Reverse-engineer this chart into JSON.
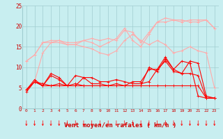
{
  "x": [
    0,
    1,
    2,
    3,
    4,
    5,
    6,
    7,
    8,
    9,
    10,
    11,
    12,
    13,
    14,
    15,
    16,
    17,
    18,
    19,
    20,
    21,
    22,
    23
  ],
  "series": [
    {
      "color": "#ffaaaa",
      "lw": 0.8,
      "values": [
        11.5,
        13.0,
        16.0,
        16.5,
        16.5,
        16.0,
        16.0,
        16.5,
        17.0,
        16.5,
        17.0,
        16.5,
        19.0,
        18.5,
        16.0,
        18.5,
        21.0,
        22.0,
        21.5,
        21.0,
        21.5,
        21.5,
        21.5,
        19.5
      ]
    },
    {
      "color": "#ffaaaa",
      "lw": 0.8,
      "values": [
        4.5,
        6.5,
        13.5,
        16.0,
        16.5,
        15.5,
        15.5,
        15.0,
        14.5,
        13.5,
        13.0,
        14.0,
        16.5,
        18.0,
        16.5,
        15.5,
        16.5,
        15.5,
        13.5,
        14.0,
        15.0,
        14.0,
        13.5,
        5.0
      ]
    },
    {
      "color": "#ffaaaa",
      "lw": 0.8,
      "values": [
        11.5,
        13.0,
        16.0,
        16.0,
        16.0,
        15.5,
        15.5,
        16.5,
        16.0,
        15.0,
        16.0,
        17.0,
        19.5,
        16.5,
        15.0,
        18.0,
        21.0,
        21.0,
        21.5,
        21.5,
        21.0,
        21.0,
        21.5,
        19.5
      ]
    },
    {
      "color": "#ff0000",
      "lw": 0.8,
      "values": [
        4.5,
        7.0,
        5.5,
        8.5,
        7.5,
        5.5,
        8.0,
        7.5,
        7.5,
        6.5,
        6.5,
        7.0,
        6.5,
        6.0,
        6.0,
        6.5,
        9.5,
        11.5,
        9.0,
        8.5,
        8.5,
        8.0,
        2.5,
        2.5
      ]
    },
    {
      "color": "#ff0000",
      "lw": 0.8,
      "values": [
        4.5,
        6.5,
        6.0,
        5.5,
        6.0,
        5.5,
        5.5,
        7.5,
        6.0,
        6.0,
        5.5,
        5.5,
        5.5,
        5.5,
        5.5,
        10.0,
        9.0,
        12.0,
        9.5,
        11.5,
        11.0,
        3.0,
        2.5,
        2.5
      ]
    },
    {
      "color": "#ff0000",
      "lw": 0.8,
      "values": [
        4.0,
        6.5,
        5.5,
        8.0,
        7.0,
        5.5,
        6.0,
        5.5,
        5.5,
        5.5,
        5.5,
        6.0,
        5.5,
        6.5,
        6.5,
        9.5,
        9.5,
        12.5,
        9.5,
        8.5,
        11.5,
        11.0,
        3.0,
        2.5
      ]
    },
    {
      "color": "#ff0000",
      "lw": 0.8,
      "values": [
        4.5,
        6.5,
        5.5,
        5.5,
        5.5,
        5.5,
        5.5,
        5.5,
        5.5,
        5.5,
        5.5,
        5.5,
        5.5,
        5.5,
        5.5,
        5.5,
        5.5,
        5.5,
        5.5,
        5.5,
        5.5,
        5.5,
        2.5,
        2.5
      ]
    }
  ],
  "xlabel": "Vent moyen/en rafales ( km/h )",
  "xlim": [
    -0.5,
    23.5
  ],
  "ylim": [
    0,
    25
  ],
  "yticks": [
    0,
    5,
    10,
    15,
    20,
    25
  ],
  "xticks": [
    0,
    1,
    2,
    3,
    4,
    5,
    6,
    7,
    8,
    9,
    10,
    11,
    12,
    13,
    14,
    15,
    16,
    17,
    18,
    19,
    20,
    21,
    22,
    23
  ],
  "bg_color": "#c8eef0",
  "grid_color": "#a0ccd0",
  "line_color": "#ff0000",
  "label_color": "#cc0000"
}
